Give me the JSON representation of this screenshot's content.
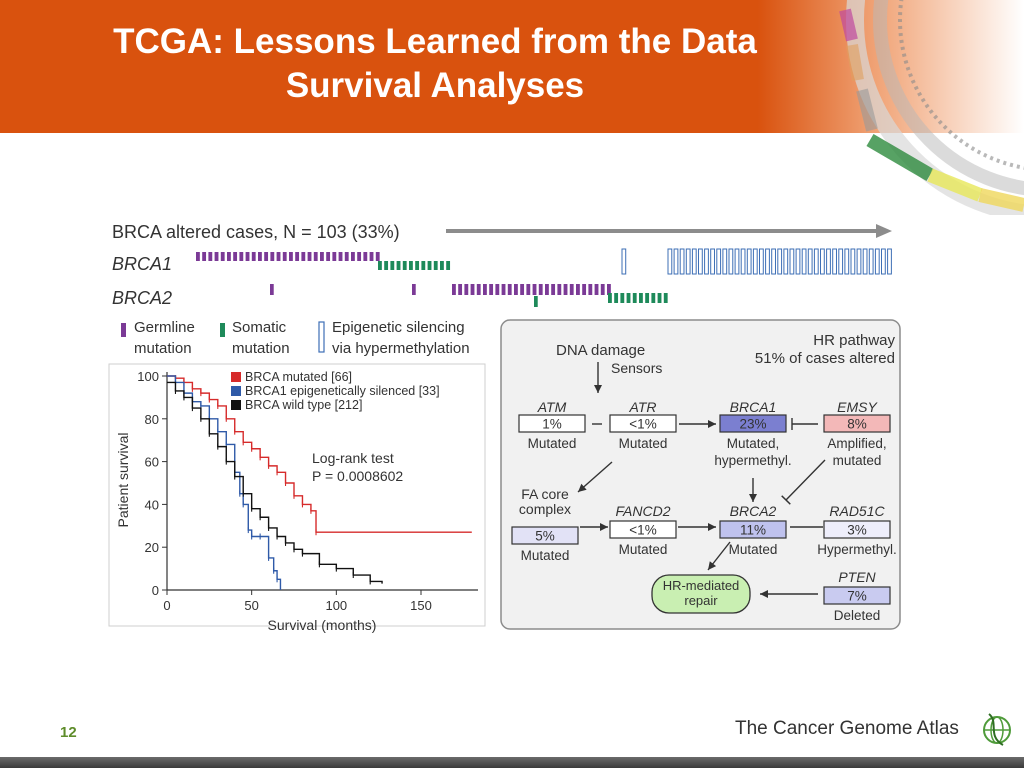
{
  "slide": {
    "title_line1": "TCGA:  Lessons Learned from the Data",
    "title_line2": "Survival Analyses",
    "slide_number": "12",
    "logo_text": "The Cancer Genome Atlas"
  },
  "oncoprint": {
    "header_text": "BRCA altered cases, N = 103 (33%)",
    "rows": [
      "BRCA1",
      "BRCA2"
    ],
    "legend": [
      {
        "line1": "Germline",
        "line2": "mutation",
        "color": "#7b3a96"
      },
      {
        "line1": "Somatic",
        "line2": "mutation",
        "color": "#1e8a5a"
      },
      {
        "line1": "Epigenetic silencing",
        "line2": "via hypermethylation",
        "color": "#3e6fb6"
      }
    ]
  },
  "chart_data": {
    "type": "line",
    "xlabel": "Survival (months)",
    "ylabel": "Patient survival",
    "xlim": [
      0,
      180
    ],
    "ylim": [
      0,
      100
    ],
    "xticks": [
      0,
      50,
      100,
      150
    ],
    "yticks": [
      0,
      20,
      40,
      60,
      80,
      100
    ],
    "legend_placement": "top-right",
    "series": [
      {
        "name": "BRCA mutated [66]",
        "color": "#d62b2b",
        "x": [
          0,
          5,
          10,
          15,
          20,
          25,
          30,
          35,
          40,
          45,
          50,
          55,
          60,
          65,
          70,
          75,
          80,
          85,
          88,
          180
        ],
        "y": [
          100,
          99,
          97,
          94,
          92,
          89,
          86,
          80,
          74,
          69,
          66,
          62,
          58,
          55,
          50,
          44,
          40,
          37,
          27,
          27
        ]
      },
      {
        "name": "BRCA1 epigenetically silenced [33]",
        "color": "#2f5aa8",
        "x": [
          0,
          5,
          10,
          15,
          20,
          25,
          30,
          35,
          40,
          43,
          45,
          48,
          50,
          55,
          60,
          63,
          65,
          67
        ],
        "y": [
          100,
          97,
          92,
          88,
          86,
          80,
          74,
          68,
          55,
          45,
          40,
          28,
          25,
          25,
          15,
          9,
          5,
          0
        ]
      },
      {
        "name": "BRCA wild type [212]",
        "color": "#111111",
        "x": [
          0,
          5,
          10,
          15,
          20,
          25,
          30,
          35,
          40,
          45,
          50,
          55,
          60,
          65,
          70,
          75,
          80,
          90,
          100,
          110,
          120,
          127
        ],
        "y": [
          97,
          93,
          90,
          85,
          80,
          73,
          67,
          60,
          53,
          45,
          38,
          34,
          29,
          25,
          22,
          19,
          17,
          12,
          10,
          7,
          4,
          3
        ]
      }
    ],
    "annotation_line1": "Log-rank test",
    "annotation_line2": "P = 0.0008602"
  },
  "pathway": {
    "title_line1": "HR pathway",
    "title_line2": "51% of cases altered",
    "dna_damage": "DNA damage",
    "sensors": "Sensors",
    "nodes": [
      {
        "id": "atm",
        "name": "ATM",
        "pct": "1%",
        "status_line1": "Mutated",
        "status_line2": "",
        "fill": "#ffffff"
      },
      {
        "id": "atr",
        "name": "ATR",
        "pct": "<1%",
        "status_line1": "Mutated",
        "status_line2": "",
        "fill": "#ffffff"
      },
      {
        "id": "brca1",
        "name": "BRCA1",
        "pct": "23%",
        "status_line1": "Mutated,",
        "status_line2": "hypermethyl.",
        "fill": "#7b7fd0"
      },
      {
        "id": "emsy",
        "name": "EMSY",
        "pct": "8%",
        "status_line1": "Amplified,",
        "status_line2": "mutated",
        "fill": "#f3b8b8"
      },
      {
        "id": "fa",
        "name_line1": "FA core",
        "name_line2": "complex",
        "pct": "5%",
        "status_line1": "Mutated",
        "status_line2": "",
        "fill": "#e2e2f6"
      },
      {
        "id": "fancd2",
        "name": "FANCD2",
        "pct": "<1%",
        "status_line1": "Mutated",
        "status_line2": "",
        "fill": "#ffffff"
      },
      {
        "id": "brca2",
        "name": "BRCA2",
        "pct": "11%",
        "status_line1": "Mutated",
        "status_line2": "",
        "fill": "#bfc2ee"
      },
      {
        "id": "rad51c",
        "name": "RAD51C",
        "pct": "3%",
        "status_line1": "Hypermethyl.",
        "status_line2": "",
        "fill": "#eeeefb"
      },
      {
        "id": "pten",
        "name": "PTEN",
        "pct": "7%",
        "status_line1": "Deleted",
        "status_line2": "",
        "fill": "#c9cbf0"
      }
    ],
    "hr_repair_line1": "HR-mediated",
    "hr_repair_line2": "repair"
  },
  "colors": {
    "header_orange": "#d9520e",
    "germline": "#7b3a96",
    "somatic": "#1e8a5a",
    "epigenetic": "#3e6fb6",
    "hr_repair_fill": "#c9efb2"
  }
}
